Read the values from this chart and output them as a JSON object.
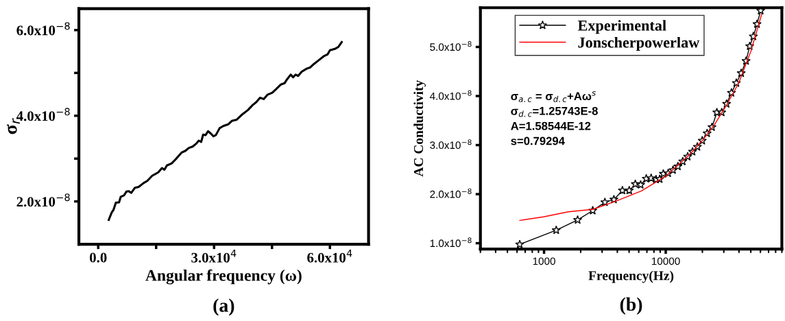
{
  "chart_data": [
    {
      "type": "line",
      "xlabel": "Angular frequency (ω)",
      "ylabel": "σ$_{r}$",
      "annotations": [
        "(a)"
      ],
      "xlim": [
        -5000,
        70000
      ],
      "ylim": [
        1e-08,
        6.5e-08
      ],
      "xticks": [
        {
          "value": 0,
          "label": "0.0"
        },
        {
          "value": 15000,
          "label": null
        },
        {
          "value": 30000,
          "label": "3.0x10$^{4}$"
        },
        {
          "value": 45000,
          "label": null
        },
        {
          "value": 60000,
          "label": "6.0x10$^{4}$"
        }
      ],
      "yticks": [
        {
          "value": 2e-08,
          "label": "2.0x10$^{−8}$"
        },
        {
          "value": 3e-08,
          "label": null
        },
        {
          "value": 4e-08,
          "label": "4.0x10$^{−8}$"
        },
        {
          "value": 5e-08,
          "label": null
        },
        {
          "value": 6e-08,
          "label": "6.0x10$^{−8}$"
        }
      ],
      "grid": false,
      "legend": false,
      "marker": "none",
      "line_style": "solid",
      "series": [
        {
          "color": "#000000",
          "x": [
            2730,
            3490,
            3940,
            4570,
            5400,
            5840,
            6670,
            7300,
            7940,
            8570,
            9520,
            10480,
            11750,
            12700,
            13970,
            15560,
            16510,
            17140,
            17780,
            19050,
            20320,
            21590,
            22540,
            23490,
            24440,
            25400,
            26030,
            26670,
            27170,
            27810,
            28440,
            29210,
            29840,
            30480,
            31430,
            32380,
            33650,
            34600,
            35870,
            37140,
            38730,
            40000,
            40950,
            41900,
            42860,
            43810,
            45080,
            46030,
            47300,
            48250,
            48890,
            49840,
            50480,
            51110,
            51750,
            52700,
            53970,
            54920,
            55870,
            57140,
            58410,
            59370,
            60000,
            61270,
            62220,
            63050
          ],
          "values": [
            1.57e-08,
            1.74e-08,
            1.8e-08,
            1.97e-08,
            1.98e-08,
            2.11e-08,
            2.14e-08,
            2.23e-08,
            2.24e-08,
            2.2e-08,
            2.32e-08,
            2.34e-08,
            2.43e-08,
            2.48e-08,
            2.6e-08,
            2.68e-08,
            2.78e-08,
            2.74e-08,
            2.84e-08,
            2.89e-08,
            3.01e-08,
            3.14e-08,
            3.18e-08,
            3.25e-08,
            3.28e-08,
            3.35e-08,
            3.42e-08,
            3.39e-08,
            3.56e-08,
            3.55e-08,
            3.64e-08,
            3.58e-08,
            3.52e-08,
            3.55e-08,
            3.71e-08,
            3.76e-08,
            3.8e-08,
            3.88e-08,
            3.91e-08,
            4.02e-08,
            4.13e-08,
            4.25e-08,
            4.32e-08,
            4.42e-08,
            4.39e-08,
            4.49e-08,
            4.54e-08,
            4.62e-08,
            4.73e-08,
            4.76e-08,
            4.85e-08,
            4.96e-08,
            4.9e-08,
            4.96e-08,
            4.93e-08,
            5.03e-08,
            5.1e-08,
            5.13e-08,
            5.21e-08,
            5.3e-08,
            5.39e-08,
            5.43e-08,
            5.53e-08,
            5.56e-08,
            5.61e-08,
            5.72e-08
          ]
        }
      ]
    },
    {
      "type": "line",
      "xlabel": "Frequency(Hz)",
      "ylabel": "AC Conductivity",
      "log": "x",
      "annotations": [
        "σ$_{a.c}$ = σ$_{d.c}$+Aω$^{s}$",
        "σ$_{d.c}$=1.25743E-8",
        "A=1.58544E-12",
        "s=0.79294",
        "(b)"
      ],
      "xlim": [
        300,
        90000
      ],
      "ylim": [
        8.8e-09,
        5.8e-08
      ],
      "xticks": [
        1000,
        10000
      ],
      "yticks": [
        {
          "value": 1e-08,
          "label": "1.0x10$^{−8}$"
        },
        {
          "value": 2e-08,
          "label": "2.0x10$^{−8}$"
        },
        {
          "value": 3e-08,
          "label": "3.0x10$^{−8}$"
        },
        {
          "value": 4e-08,
          "label": "4.0x10$^{−8}$"
        },
        {
          "value": 5e-08,
          "label": "5.0x10$^{−8}$"
        }
      ],
      "grid": false,
      "legend": "top left",
      "line_style": "solid",
      "series": [
        {
          "name": "Experimental",
          "color": "#000000",
          "marker": "star",
          "x": [
            631,
            1259,
            1888,
            2512,
            3162,
            3750,
            4406,
            5012,
            5623,
            6223,
            6918,
            7586,
            8318,
            8913,
            9550,
            10470,
            11480,
            12590,
            13800,
            15140,
            16600,
            18200,
            19950,
            21880,
            23990,
            26300,
            28840,
            31620,
            34670,
            38020,
            41690,
            45710,
            48980,
            52480,
            56230,
            60260
          ],
          "values": [
            9.75e-09,
            1.265e-08,
            1.475e-08,
            1.665e-08,
            1.835e-08,
            1.89e-08,
            2.075e-08,
            2.075e-08,
            2.205e-08,
            2.19e-08,
            2.315e-08,
            2.325e-08,
            2.3e-08,
            2.305e-08,
            2.415e-08,
            2.425e-08,
            2.49e-08,
            2.565e-08,
            2.665e-08,
            2.765e-08,
            2.865e-08,
            2.965e-08,
            3.09e-08,
            3.24e-08,
            3.365e-08,
            3.665e-08,
            3.665e-08,
            3.84e-08,
            4.065e-08,
            4.265e-08,
            4.465e-08,
            4.715e-08,
            5.015e-08,
            5.215e-08,
            5.465e-08,
            5.74e-08
          ]
        },
        {
          "name": "Jonscherpowerlaw",
          "color": "#ff0000",
          "marker": "none",
          "x": [
            631,
            1000,
            1585,
            2512,
            3981,
            6310,
            10000,
            15850,
            19950,
            25120,
            31620,
            39810,
            50120,
            61380
          ],
          "values": [
            1.465e-08,
            1.54e-08,
            1.64e-08,
            1.69e-08,
            1.865e-08,
            2.065e-08,
            2.365e-08,
            2.815e-08,
            3.09e-08,
            3.415e-08,
            3.815e-08,
            4.265e-08,
            4.915e-08,
            5.665e-08
          ]
        }
      ]
    }
  ]
}
